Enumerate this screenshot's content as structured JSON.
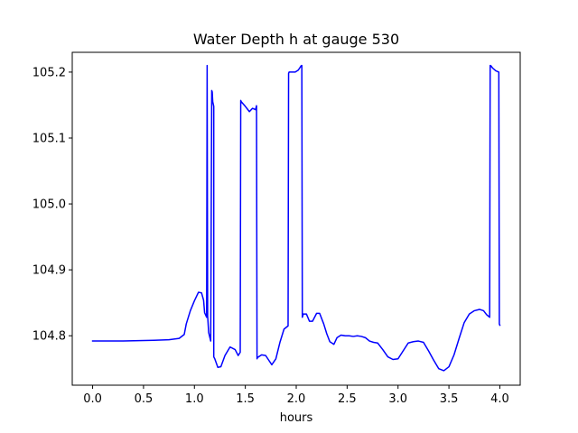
{
  "chart_data": {
    "type": "line",
    "title": "Water Depth h at gauge 530",
    "xlabel": "hours",
    "ylabel": "",
    "xlim": [
      -0.2,
      4.2
    ],
    "ylim": [
      104.725,
      105.23
    ],
    "grid": false,
    "x_ticks": [
      {
        "value": 0.0,
        "label": "0.0"
      },
      {
        "value": 0.5,
        "label": "0.5"
      },
      {
        "value": 1.0,
        "label": "1.0"
      },
      {
        "value": 1.5,
        "label": "1.5"
      },
      {
        "value": 2.0,
        "label": "2.0"
      },
      {
        "value": 2.5,
        "label": "2.5"
      },
      {
        "value": 3.0,
        "label": "3.0"
      },
      {
        "value": 3.5,
        "label": "3.5"
      },
      {
        "value": 4.0,
        "label": "4.0"
      }
    ],
    "y_ticks": [
      {
        "value": 104.8,
        "label": "104.8"
      },
      {
        "value": 104.9,
        "label": "104.9"
      },
      {
        "value": 105.0,
        "label": "105.0"
      },
      {
        "value": 105.1,
        "label": "105.1"
      },
      {
        "value": 105.2,
        "label": "105.2"
      }
    ],
    "series": [
      {
        "color": "#0000ff",
        "x": [
          0.0,
          0.3,
          0.6,
          0.75,
          0.85,
          0.9,
          0.92,
          0.96,
          1.0,
          1.04,
          1.07,
          1.09,
          1.1,
          1.12,
          1.125,
          1.13,
          1.14,
          1.16,
          1.17,
          1.175,
          1.18,
          1.19,
          1.19,
          1.2,
          1.23,
          1.26,
          1.3,
          1.35,
          1.4,
          1.43,
          1.45,
          1.455,
          1.46,
          1.5,
          1.54,
          1.57,
          1.6,
          1.61,
          1.615,
          1.62,
          1.66,
          1.7,
          1.73,
          1.76,
          1.8,
          1.84,
          1.88,
          1.92,
          1.925,
          1.93,
          1.96,
          1.99,
          2.02,
          2.05,
          2.055,
          2.06,
          2.07,
          2.1,
          2.13,
          2.16,
          2.2,
          2.23,
          2.27,
          2.3,
          2.33,
          2.37,
          2.4,
          2.44,
          2.48,
          2.52,
          2.56,
          2.6,
          2.64,
          2.68,
          2.72,
          2.76,
          2.8,
          2.85,
          2.9,
          2.95,
          3.0,
          3.05,
          3.1,
          3.15,
          3.2,
          3.25,
          3.3,
          3.35,
          3.4,
          3.45,
          3.5,
          3.55,
          3.6,
          3.65,
          3.7,
          3.75,
          3.8,
          3.84,
          3.87,
          3.9,
          3.905,
          3.91,
          3.93,
          3.96,
          3.99,
          3.995,
          4.0
        ],
        "y": [
          104.792,
          104.792,
          104.793,
          104.794,
          104.796,
          104.802,
          104.818,
          104.838,
          104.853,
          104.866,
          104.865,
          104.854,
          104.835,
          104.828,
          105.21,
          104.83,
          104.805,
          104.792,
          105.172,
          105.17,
          105.155,
          105.148,
          104.768,
          104.765,
          104.752,
          104.753,
          104.77,
          104.783,
          104.779,
          104.77,
          104.775,
          105.157,
          105.155,
          105.148,
          105.14,
          105.145,
          105.143,
          105.149,
          104.765,
          104.767,
          104.771,
          104.77,
          104.763,
          104.756,
          104.765,
          104.79,
          104.81,
          104.815,
          105.198,
          105.2,
          105.2,
          105.2,
          105.203,
          105.21,
          105.21,
          104.828,
          104.833,
          104.833,
          104.822,
          104.822,
          104.834,
          104.834,
          104.818,
          104.803,
          104.791,
          104.787,
          104.797,
          104.801,
          104.8,
          104.8,
          104.799,
          104.8,
          104.799,
          104.797,
          104.792,
          104.79,
          104.789,
          104.779,
          104.768,
          104.764,
          104.765,
          104.777,
          104.789,
          104.791,
          104.792,
          104.79,
          104.777,
          104.763,
          104.75,
          104.747,
          104.753,
          104.771,
          104.796,
          104.82,
          104.833,
          104.838,
          104.84,
          104.838,
          104.832,
          104.828,
          105.21,
          105.21,
          105.206,
          105.202,
          105.2,
          104.818,
          104.816
        ]
      }
    ]
  }
}
